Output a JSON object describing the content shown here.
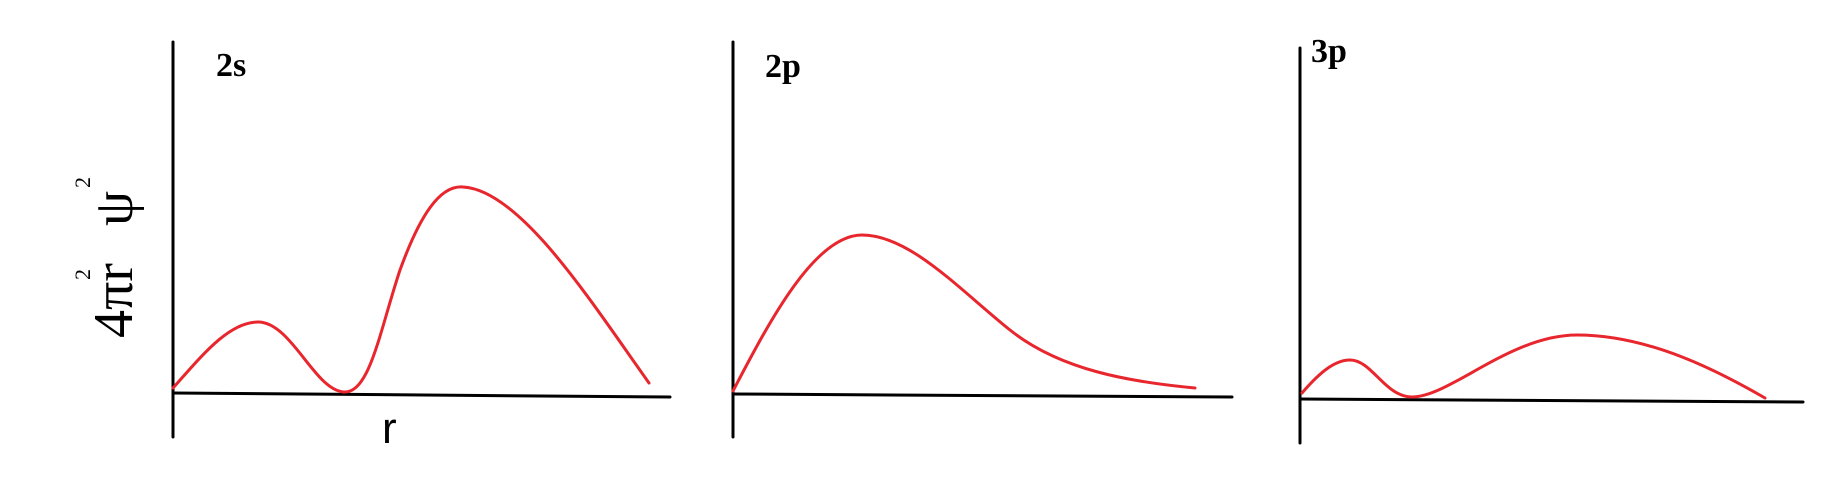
{
  "figure": {
    "y_label": {
      "prefix": "4πr",
      "r_exponent": "2",
      "psi": "ψ",
      "psi_exponent": "2"
    },
    "x_label": "r",
    "colors": {
      "curve": "#e8262d",
      "axes": "#000000",
      "background": "#ffffff"
    },
    "panels": [
      {
        "label": "2s"
      },
      {
        "label": "2p"
      },
      {
        "label": "3p"
      }
    ]
  }
}
